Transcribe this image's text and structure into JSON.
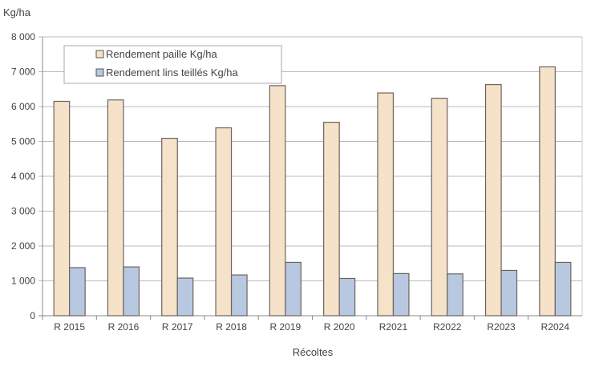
{
  "chart_data": {
    "type": "bar",
    "ylabel": "Kg/ha",
    "xlabel": "Récoltes",
    "ylim": [
      0,
      8000
    ],
    "yticks": [
      0,
      1000,
      2000,
      3000,
      4000,
      5000,
      6000,
      7000,
      8000
    ],
    "ytick_labels": [
      "0",
      "1 000",
      "2 000",
      "3 000",
      "4 000",
      "5 000",
      "6 000",
      "7 000",
      "8 000"
    ],
    "grid": true,
    "legend_placement": "top-left",
    "categories": [
      "R 2015",
      "R 2016",
      "R 2017",
      "R 2018",
      "R 2019",
      "R 2020",
      "R2021",
      "R2022",
      "R2023",
      "R2024"
    ],
    "series": [
      {
        "name": "Rendement paille Kg/ha",
        "color": "#f5e2c8",
        "values": [
          6150,
          6190,
          5090,
          5390,
          6600,
          5550,
          6390,
          6240,
          6630,
          7140
        ]
      },
      {
        "name": "Rendement lins teillés Kg/ha",
        "color": "#b8c8e0",
        "values": [
          1380,
          1400,
          1080,
          1170,
          1530,
          1070,
          1210,
          1200,
          1300,
          1530
        ]
      }
    ]
  }
}
